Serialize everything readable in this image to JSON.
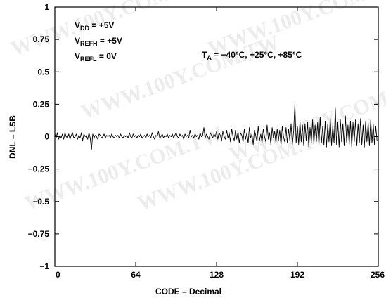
{
  "chart_data": {
    "type": "line",
    "xlabel": "CODE – Decimal",
    "ylabel": "DNL – LSB",
    "xlim": [
      0,
      256
    ],
    "ylim": [
      -1,
      1
    ],
    "x_ticks": [
      "0",
      "64",
      "128",
      "192",
      "256"
    ],
    "y_ticks": [
      "1",
      "0.75",
      "0.5",
      "0.25",
      "0",
      "−0.25",
      "−0.5",
      "−0.75",
      "−1"
    ],
    "grid": false,
    "annotations": {
      "vdd": "V DD = +5V",
      "vrefh": "VREFH = +5V",
      "vrefl": "VREFL = 0V",
      "temp": "TA = −40°C, +25°C, +85°C"
    },
    "series": [
      {
        "x": [
          0,
          1,
          2,
          3,
          4,
          5,
          6,
          7,
          8,
          9,
          10,
          11,
          12,
          13,
          14,
          15,
          16,
          17,
          18,
          19,
          20,
          21,
          22,
          23,
          24,
          25,
          26,
          27,
          28,
          29,
          30,
          31,
          32,
          33,
          34,
          35,
          36,
          37,
          38,
          39,
          40,
          41,
          42,
          43,
          44,
          45,
          46,
          47,
          48,
          49,
          50,
          51,
          52,
          53,
          54,
          55,
          56,
          57,
          58,
          59,
          60,
          61,
          62,
          63,
          64,
          65,
          66,
          67,
          68,
          69,
          70,
          71,
          72,
          73,
          74,
          75,
          76,
          77,
          78,
          79,
          80,
          81,
          82,
          83,
          84,
          85,
          86,
          87,
          88,
          89,
          90,
          91,
          92,
          93,
          94,
          95,
          96,
          97,
          98,
          99,
          100,
          101,
          102,
          103,
          104,
          105,
          106,
          107,
          108,
          109,
          110,
          111,
          112,
          113,
          114,
          115,
          116,
          117,
          118,
          119,
          120,
          121,
          122,
          123,
          124,
          125,
          126,
          127,
          128,
          129,
          130,
          131,
          132,
          133,
          134,
          135,
          136,
          137,
          138,
          139,
          140,
          141,
          142,
          143,
          144,
          145,
          146,
          147,
          148,
          149,
          150,
          151,
          152,
          153,
          154,
          155,
          156,
          157,
          158,
          159,
          160,
          161,
          162,
          163,
          164,
          165,
          166,
          167,
          168,
          169,
          170,
          171,
          172,
          173,
          174,
          175,
          176,
          177,
          178,
          179,
          180,
          181,
          182,
          183,
          184,
          185,
          186,
          187,
          188,
          189,
          190,
          191,
          192,
          193,
          194,
          195,
          196,
          197,
          198,
          199,
          200,
          201,
          202,
          203,
          204,
          205,
          206,
          207,
          208,
          209,
          210,
          211,
          212,
          213,
          214,
          215,
          216,
          217,
          218,
          219,
          220,
          221,
          222,
          223,
          224,
          225,
          226,
          227,
          228,
          229,
          230,
          231,
          232,
          233,
          234,
          235,
          236,
          237,
          238,
          239,
          240,
          241,
          242,
          243,
          244,
          245,
          246,
          247,
          248,
          249,
          250,
          251,
          252,
          253,
          254,
          255
        ],
        "y": [
          0.02,
          -0.01,
          0.03,
          -0.02,
          0.01,
          -0.01,
          0.02,
          -0.02,
          0.03,
          0,
          -0.01,
          0.02,
          -0.02,
          0.01,
          0.03,
          -0.01,
          0,
          0.02,
          -0.02,
          0.01,
          -0.01,
          0.03,
          -0.03,
          0.02,
          0,
          0.01,
          -0.02,
          0.03,
          -0.01,
          -0.1,
          0.02,
          -0.01,
          0.01,
          0,
          -0.02,
          0.02,
          0.01,
          -0.01,
          0,
          0.02,
          -0.01,
          0.01,
          0,
          0.01,
          -0.01,
          0.02,
          0,
          -0.01,
          0.01,
          0,
          0.01,
          -0.01,
          0.02,
          0,
          -0.01,
          0.01,
          0,
          0.01,
          -0.01,
          0.03,
          0,
          -0.01,
          0.02,
          0,
          0.01,
          -0.01,
          0.01,
          0,
          0.02,
          -0.01,
          0,
          0.01,
          -0.01,
          0.02,
          0,
          0.01,
          -0.01,
          0.03,
          0,
          -0.02,
          0.01,
          0,
          0.04,
          -0.01,
          0,
          0.02,
          -0.01,
          0.01,
          0,
          0.02,
          -0.01,
          0.01,
          0,
          0.02,
          -0.01,
          0.01,
          0.03,
          0,
          -0.01,
          0.02,
          0,
          0.01,
          -0.02,
          0.02,
          0,
          0.01,
          -0.01,
          0.05,
          0,
          0.01,
          -0.01,
          0.02,
          0,
          0.01,
          -0.02,
          0.03,
          0,
          0.01,
          0.07,
          -0.01,
          0.02,
          0,
          -0.02,
          0.03,
          0.01,
          -0.01,
          0.02,
          0,
          0.04,
          -0.02,
          0.03,
          0.01,
          -0.03,
          0.04,
          0,
          -0.02,
          0.05,
          -0.01,
          0.03,
          -0.04,
          0.06,
          0,
          -0.03,
          0.05,
          -0.02,
          0.04,
          -0.05,
          0.03,
          0.01,
          -0.04,
          0.06,
          -0.02,
          0.03,
          -0.05,
          0.07,
          -0.01,
          0.02,
          -0.06,
          0.05,
          0.01,
          -0.04,
          0.08,
          -0.03,
          0.02,
          -0.05,
          0.06,
          0,
          -0.04,
          0.09,
          -0.02,
          0.03,
          -0.06,
          0.07,
          -0.01,
          0.04,
          -0.05,
          0.06,
          -0.03,
          0.05,
          -0.07,
          0.08,
          0,
          -0.04,
          0.07,
          -0.05,
          0.06,
          -0.03,
          0.1,
          -0.06,
          0.04,
          0.25,
          -0.05,
          0.08,
          -0.06,
          0.12,
          -0.04,
          0.09,
          -0.07,
          0.1,
          -0.03,
          0.11,
          -0.08,
          0.07,
          -0.05,
          0.13,
          -0.06,
          0.09,
          -0.04,
          0.11,
          -0.07,
          0.15,
          -0.05,
          0.08,
          -0.06,
          0.12,
          -0.08,
          0.1,
          -0.04,
          0.14,
          -0.07,
          0.09,
          -0.05,
          0.22,
          -0.06,
          0.11,
          -0.08,
          0.13,
          -0.04,
          0.1,
          -0.07,
          0.16,
          -0.05,
          0.09,
          -0.06,
          0.12,
          -0.08,
          0.11,
          -0.04,
          0.13,
          -0.07,
          0.1,
          -0.05,
          0.14,
          -0.06,
          0.09,
          -0.08,
          0.12,
          -0.04,
          0.11,
          -0.07,
          0.13,
          -0.05,
          0.1,
          -0.06,
          0.08,
          -0.03
        ]
      }
    ]
  },
  "watermark": "WWW.100Y.COM.TW"
}
